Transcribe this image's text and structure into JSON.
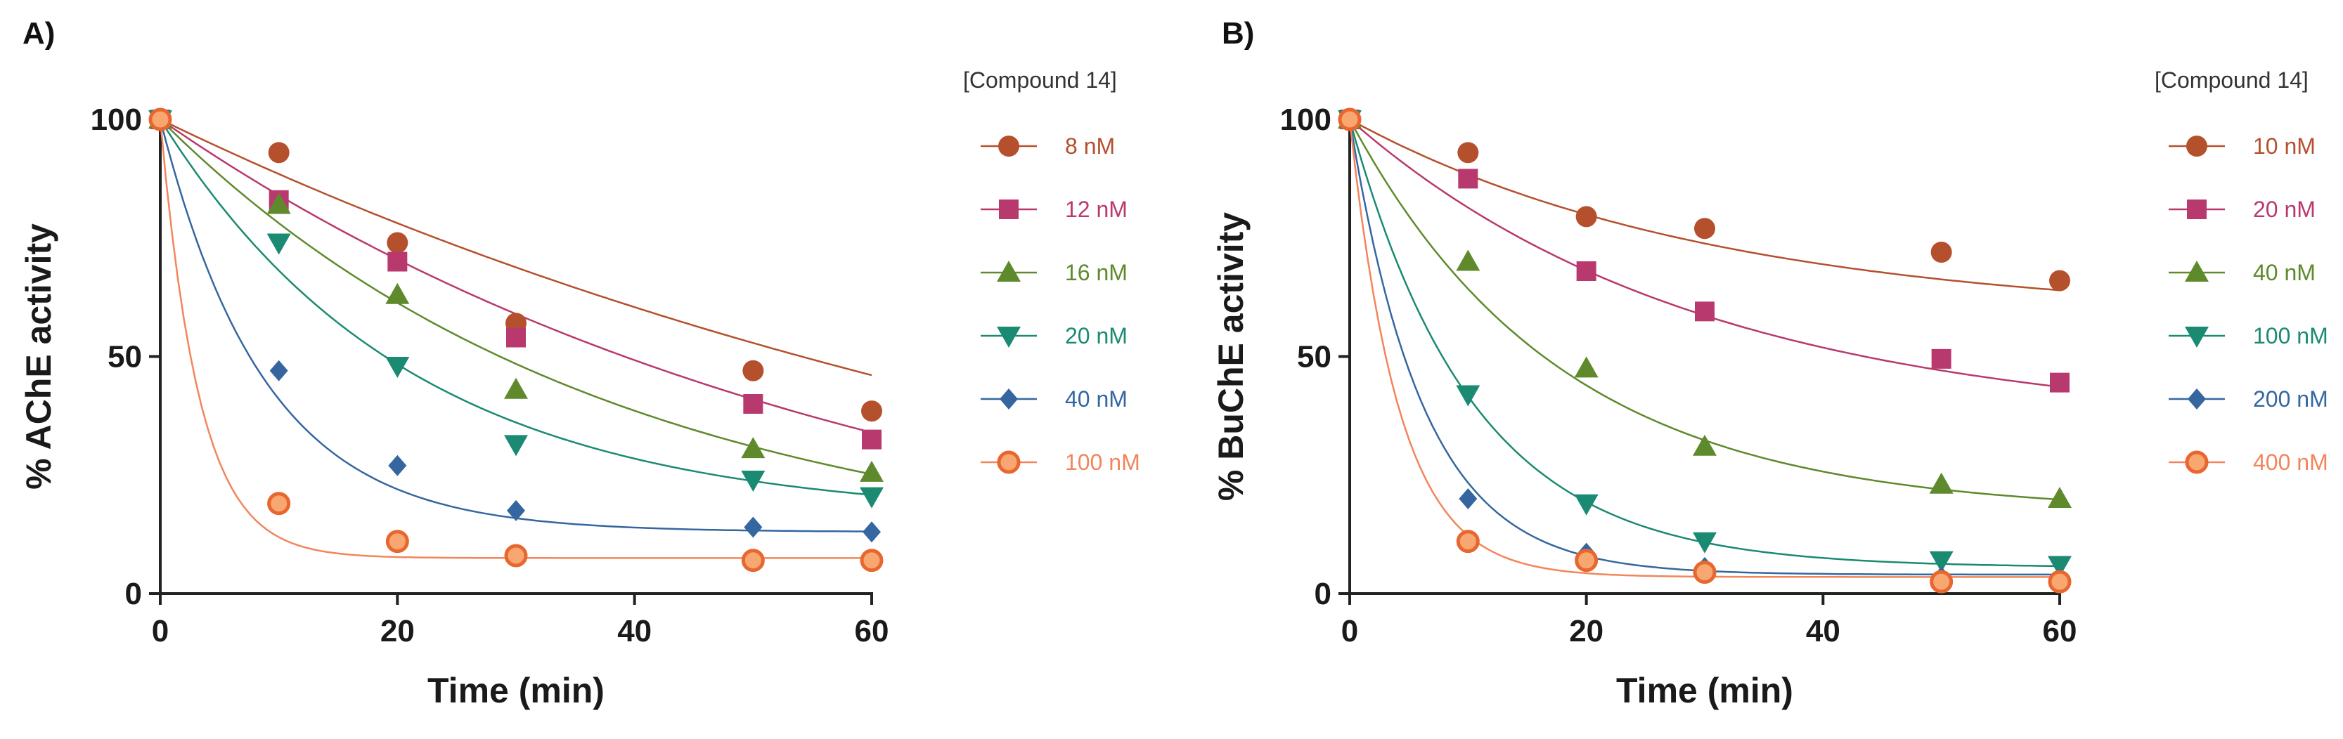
{
  "chart_data": [
    {
      "type": "scatter",
      "panel_label": "A)",
      "title": "",
      "xlabel": "Time (min)",
      "ylabel": "% AChE activity",
      "xlim": [
        0,
        60
      ],
      "ylim": [
        0,
        100
      ],
      "xticks": [
        0,
        20,
        40,
        60
      ],
      "yticks": [
        0,
        50,
        100
      ],
      "grid": false,
      "legend_title": "[Compound 14]",
      "legend_position": "right",
      "x": [
        0,
        10,
        20,
        30,
        50,
        60
      ],
      "series": [
        {
          "name": "8 nM",
          "marker": "circle",
          "color": "#b5502d",
          "values": [
            100,
            93,
            74,
            57,
            47,
            38.5
          ],
          "fit": {
            "plateau": -15,
            "k": 0.01055
          }
        },
        {
          "name": "12 nM",
          "marker": "square",
          "color": "#b8396e",
          "values": [
            100,
            83,
            70,
            54,
            40,
            32.5
          ],
          "fit": {
            "plateau": -5,
            "k": 0.01652
          }
        },
        {
          "name": "16 nM",
          "marker": "triangle-up",
          "color": "#5e8a2c",
          "values": [
            100,
            82,
            63,
            43,
            30.5,
            25.5
          ],
          "fit": {
            "plateau": 6,
            "k": 0.0265
          }
        },
        {
          "name": "20 nM",
          "marker": "triangle-down",
          "color": "#1a8a72",
          "values": [
            100,
            74,
            48,
            31.5,
            24,
            20.5
          ],
          "fit": {
            "plateau": 16,
            "k": 0.0477
          }
        },
        {
          "name": "40 nM",
          "marker": "diamond",
          "color": "#3566a0",
          "values": [
            100,
            47,
            27,
            17.5,
            14,
            13
          ],
          "fit": {
            "plateau": 13,
            "k": 0.1134
          }
        },
        {
          "name": "100 nM",
          "marker": "circle-ring",
          "color": "#f2855c",
          "values": [
            100,
            19,
            11,
            8,
            7,
            7
          ],
          "fit": {
            "plateau": 7.5,
            "k": 0.3046
          }
        }
      ]
    },
    {
      "type": "scatter",
      "panel_label": "B)",
      "title": "",
      "xlabel": "Time (min)",
      "ylabel": "% BuChE activity",
      "xlim": [
        0,
        60
      ],
      "ylim": [
        0,
        100
      ],
      "xticks": [
        0,
        20,
        40,
        60
      ],
      "yticks": [
        0,
        50,
        100
      ],
      "grid": false,
      "legend_title": "[Compound 14]",
      "legend_position": "right",
      "x": [
        0,
        10,
        20,
        30,
        50,
        60
      ],
      "series": [
        {
          "name": "10 nM",
          "marker": "circle",
          "color": "#b5502d",
          "values": [
            100,
            93,
            79.5,
            77,
            72,
            66
          ],
          "fit": {
            "plateau": 58,
            "k": 0.0325
          }
        },
        {
          "name": "20 nM",
          "marker": "square",
          "color": "#b8396e",
          "values": [
            100,
            87.5,
            68,
            59.5,
            49.5,
            44.5
          ],
          "fit": {
            "plateau": 35,
            "k": 0.0337
          }
        },
        {
          "name": "40 nM",
          "marker": "triangle-up",
          "color": "#5e8a2c",
          "values": [
            100,
            70,
            47.5,
            31,
            23,
            20
          ],
          "fit": {
            "plateau": 17,
            "k": 0.0563
          }
        },
        {
          "name": "100 nM",
          "marker": "triangle-down",
          "color": "#1a8a72",
          "values": [
            100,
            42,
            19,
            11,
            7,
            6
          ],
          "fit": {
            "plateau": 5.5,
            "k": 0.0962
          }
        },
        {
          "name": "200 nM",
          "marker": "diamond",
          "color": "#3566a0",
          "values": [
            100,
            20,
            8.5,
            5.5,
            3.5,
            3
          ],
          "fit": {
            "plateau": 4,
            "k": 0.16
          }
        },
        {
          "name": "400 nM",
          "marker": "circle-ring",
          "color": "#f2855c",
          "values": [
            100,
            11,
            7,
            4.5,
            2.5,
            2.5
          ],
          "fit": {
            "plateau": 3.5,
            "k": 0.24
          }
        }
      ]
    }
  ]
}
